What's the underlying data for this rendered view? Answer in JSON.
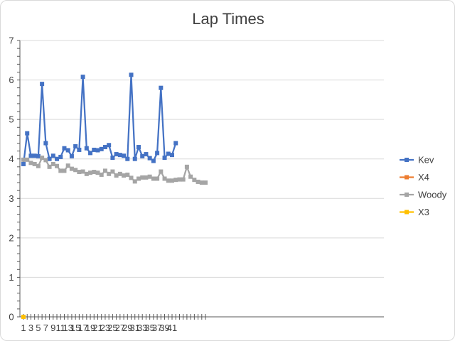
{
  "chart_data": {
    "type": "line",
    "title": "Lap Times",
    "xlabel": "",
    "ylabel": "",
    "ylim": [
      0,
      7
    ],
    "xlim": [
      1,
      50
    ],
    "y_ticks": [
      0,
      1,
      2,
      3,
      4,
      5,
      6,
      7
    ],
    "x_tick_labels": [
      1,
      3,
      5,
      7,
      9,
      11,
      13,
      15,
      17,
      19,
      21,
      23,
      25,
      27,
      29,
      31,
      33,
      35,
      37,
      39,
      41
    ],
    "grid": "horizontal",
    "legend_position": "right",
    "series": [
      {
        "name": "Kev",
        "color": "#4472c4",
        "x": [
          1,
          2,
          3,
          4,
          5,
          6,
          7,
          8,
          9,
          10,
          11,
          12,
          13,
          14,
          15,
          16,
          17,
          18,
          19,
          20,
          21,
          22,
          23,
          24,
          25,
          26,
          27,
          28,
          29,
          30,
          31,
          32,
          33,
          34,
          35,
          36,
          37,
          38,
          39,
          40,
          41,
          42
        ],
        "values": [
          3.87,
          4.65,
          4.08,
          4.08,
          4.07,
          5.9,
          4.4,
          4.0,
          4.08,
          4.0,
          4.05,
          4.27,
          4.22,
          4.07,
          4.32,
          4.23,
          6.08,
          4.27,
          4.15,
          4.23,
          4.22,
          4.25,
          4.3,
          4.35,
          4.03,
          4.12,
          4.1,
          4.08,
          4.0,
          6.13,
          4.0,
          4.3,
          4.07,
          4.12,
          4.02,
          3.95,
          4.15,
          5.8,
          4.03,
          4.13,
          4.1,
          4.4
        ]
      },
      {
        "name": "X4",
        "color": "#ed7d31",
        "x": [],
        "values": []
      },
      {
        "name": "Woody",
        "color": "#a5a5a5",
        "x": [
          1,
          2,
          3,
          4,
          5,
          6,
          7,
          8,
          9,
          10,
          11,
          12,
          13,
          14,
          15,
          16,
          17,
          18,
          19,
          20,
          21,
          22,
          23,
          24,
          25,
          26,
          27,
          28,
          29,
          30,
          31,
          32,
          33,
          34,
          35,
          36,
          37,
          38,
          39,
          40,
          41,
          42,
          43,
          44,
          45,
          46,
          47,
          48,
          49,
          50
        ],
        "values": [
          3.98,
          3.98,
          3.9,
          3.87,
          3.82,
          4.03,
          3.97,
          3.8,
          3.87,
          3.82,
          3.7,
          3.7,
          3.83,
          3.75,
          3.72,
          3.67,
          3.68,
          3.62,
          3.65,
          3.67,
          3.65,
          3.6,
          3.7,
          3.62,
          3.68,
          3.58,
          3.62,
          3.58,
          3.6,
          3.52,
          3.43,
          3.5,
          3.53,
          3.53,
          3.55,
          3.5,
          3.5,
          3.68,
          3.5,
          3.45,
          3.45,
          3.47,
          3.48,
          3.48,
          3.8,
          3.55,
          3.47,
          3.42,
          3.4,
          3.4
        ]
      },
      {
        "name": "X3",
        "color": "#ffc000",
        "x": [
          1
        ],
        "values": [
          0
        ]
      }
    ]
  }
}
